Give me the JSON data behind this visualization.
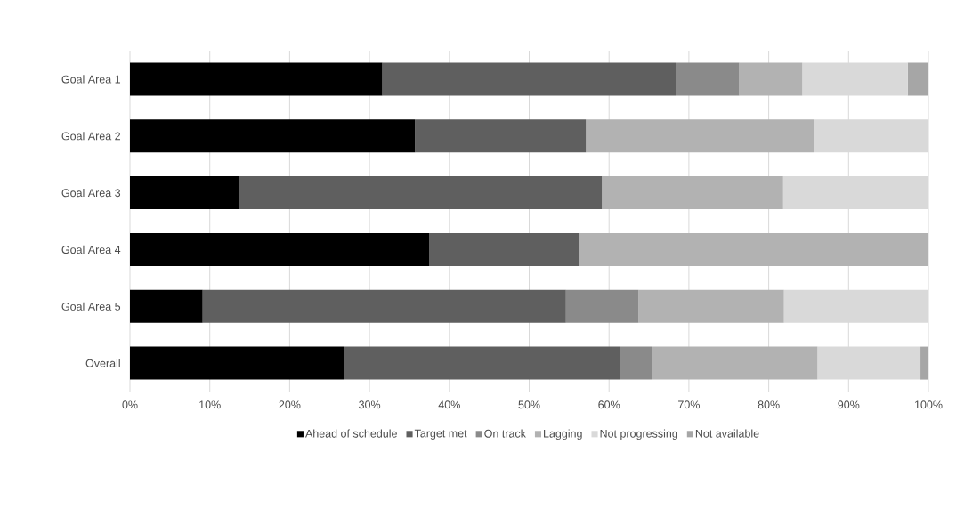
{
  "chart_data": {
    "type": "bar",
    "orientation": "horizontal",
    "stacked": true,
    "categories": [
      "Goal Area 1",
      "Goal Area 2",
      "Goal Area 3",
      "Goal Area 4",
      "Goal Area 5",
      "Overall"
    ],
    "series": [
      {
        "name": "Ahead of schedule",
        "color": "#000000",
        "values": [
          31.6,
          35.7,
          13.6,
          37.5,
          9.1,
          26.8
        ]
      },
      {
        "name": "Target met",
        "color": "#5f5f5f",
        "values": [
          36.8,
          21.4,
          45.5,
          18.8,
          45.5,
          34.6
        ]
      },
      {
        "name": "On track",
        "color": "#8a8a8a",
        "values": [
          7.9,
          0,
          0,
          0,
          9.1,
          4.0
        ]
      },
      {
        "name": "Lagging",
        "color": "#b2b2b2",
        "values": [
          7.9,
          28.6,
          22.7,
          43.7,
          18.2,
          20.7
        ]
      },
      {
        "name": "Not progressing",
        "color": "#d9d9d9",
        "values": [
          13.2,
          14.3,
          18.2,
          0,
          18.1,
          12.9
        ]
      },
      {
        "name": "Not available",
        "color": "#a6a6a6",
        "values": [
          2.6,
          0,
          0,
          0,
          0,
          1.0
        ]
      }
    ],
    "xlim": [
      0,
      100
    ],
    "xticks": [
      {
        "value": 0,
        "label": "0%"
      },
      {
        "value": 10,
        "label": "10%"
      },
      {
        "value": 20,
        "label": "20%"
      },
      {
        "value": 30,
        "label": "30%"
      },
      {
        "value": 40,
        "label": "40%"
      },
      {
        "value": 50,
        "label": "50%"
      },
      {
        "value": 60,
        "label": "60%"
      },
      {
        "value": 70,
        "label": "70%"
      },
      {
        "value": 80,
        "label": "80%"
      },
      {
        "value": 90,
        "label": "90%"
      },
      {
        "value": 100,
        "label": "100%"
      }
    ],
    "grid": "x",
    "legend": "bottom"
  }
}
